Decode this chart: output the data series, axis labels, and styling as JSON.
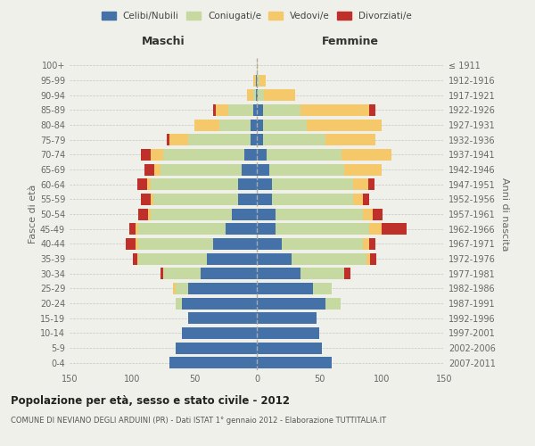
{
  "age_groups": [
    "0-4",
    "5-9",
    "10-14",
    "15-19",
    "20-24",
    "25-29",
    "30-34",
    "35-39",
    "40-44",
    "45-49",
    "50-54",
    "55-59",
    "60-64",
    "65-69",
    "70-74",
    "75-79",
    "80-84",
    "85-89",
    "90-94",
    "95-99",
    "100+"
  ],
  "birth_years": [
    "2007-2011",
    "2002-2006",
    "1997-2001",
    "1992-1996",
    "1987-1991",
    "1982-1986",
    "1977-1981",
    "1972-1976",
    "1967-1971",
    "1962-1966",
    "1957-1961",
    "1952-1956",
    "1947-1951",
    "1942-1946",
    "1937-1941",
    "1932-1936",
    "1927-1931",
    "1922-1926",
    "1917-1921",
    "1912-1916",
    "≤ 1911"
  ],
  "colors": {
    "celibi": "#4472a8",
    "coniugati": "#c5d9a0",
    "vedovi": "#f5c96a",
    "divorziati": "#c0302a"
  },
  "maschi": {
    "celibi": [
      70,
      65,
      60,
      55,
      60,
      55,
      45,
      40,
      35,
      25,
      20,
      15,
      15,
      12,
      10,
      5,
      5,
      3,
      1,
      1,
      0
    ],
    "coniugati": [
      0,
      0,
      0,
      0,
      5,
      10,
      30,
      55,
      60,
      70,
      65,
      68,
      70,
      65,
      65,
      50,
      25,
      20,
      2,
      0,
      0
    ],
    "vedovi": [
      0,
      0,
      0,
      0,
      0,
      2,
      0,
      1,
      2,
      2,
      2,
      2,
      3,
      5,
      10,
      15,
      20,
      10,
      5,
      2,
      0
    ],
    "divorziati": [
      0,
      0,
      0,
      0,
      0,
      0,
      2,
      3,
      8,
      5,
      8,
      8,
      8,
      8,
      8,
      2,
      0,
      2,
      0,
      0,
      0
    ]
  },
  "femmine": {
    "celibi": [
      60,
      52,
      50,
      48,
      55,
      45,
      35,
      28,
      20,
      15,
      15,
      12,
      12,
      10,
      8,
      5,
      5,
      5,
      1,
      0,
      0
    ],
    "coniugati": [
      0,
      0,
      0,
      0,
      12,
      15,
      35,
      60,
      65,
      75,
      70,
      65,
      65,
      60,
      60,
      50,
      35,
      30,
      5,
      2,
      0
    ],
    "vedovi": [
      0,
      0,
      0,
      0,
      0,
      0,
      0,
      3,
      5,
      10,
      8,
      8,
      12,
      30,
      40,
      40,
      60,
      55,
      25,
      5,
      1
    ],
    "divorziati": [
      0,
      0,
      0,
      0,
      0,
      0,
      5,
      5,
      5,
      20,
      8,
      5,
      5,
      0,
      0,
      0,
      0,
      5,
      0,
      0,
      0
    ]
  },
  "xlim": 150,
  "title": "Popolazione per età, sesso e stato civile - 2012",
  "subtitle": "COMUNE DI NEVIANO DEGLI ARDUINI (PR) - Dati ISTAT 1° gennaio 2012 - Elaborazione TUTTITALIA.IT",
  "ylabel_left": "Fasce di età",
  "ylabel_right": "Anni di nascita",
  "xlabel_left": "Maschi",
  "xlabel_right": "Femmine",
  "legend_labels": [
    "Celibi/Nubili",
    "Coniugati/e",
    "Vedovi/e",
    "Divorziati/e"
  ],
  "background_color": "#f0f0eb"
}
